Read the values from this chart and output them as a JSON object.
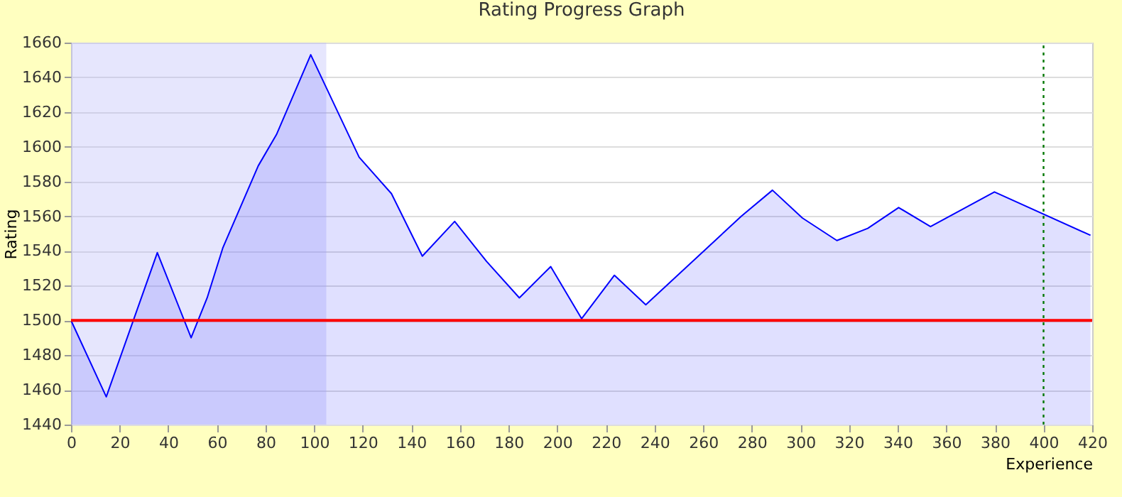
{
  "chart_data": {
    "type": "area",
    "title": "Rating Progress Graph",
    "xlabel": "Experience",
    "ylabel": "Rating",
    "x": [
      0,
      14.5,
      35.5,
      49.4,
      56,
      62.5,
      77,
      84.5,
      98.6,
      118.5,
      131.8,
      144.5,
      157.8,
      170.9,
      184.4,
      197.3,
      210,
      223.5,
      236.4,
      275.7,
      288.5,
      300.8,
      315,
      327.7,
      340.4,
      353.5,
      379.8,
      419.3
    ],
    "series": [
      {
        "color": "#0000ff",
        "values": [
          1500,
          1456,
          1539,
          1490,
          1513,
          1542,
          1589,
          1607,
          1653,
          1594,
          1573,
          1537,
          1557,
          1534,
          1513,
          1531,
          1501,
          1526,
          1509,
          1560,
          1575,
          1559,
          1546,
          1553,
          1565,
          1554,
          1574,
          1549
        ]
      }
    ],
    "xlim": [
      0,
      420
    ],
    "xticks": [
      0,
      20,
      40,
      60,
      80,
      100,
      120,
      140,
      160,
      180,
      200,
      220,
      240,
      260,
      280,
      300,
      320,
      340,
      360,
      380,
      400,
      420
    ],
    "ylim": [
      1440,
      1660
    ],
    "yticks": [
      1440,
      1460,
      1480,
      1500,
      1520,
      1540,
      1560,
      1580,
      1600,
      1620,
      1640,
      1660
    ],
    "grid": "y",
    "ref_lines": [
      {
        "axis": "y",
        "value": 1500,
        "color": "#ff0000",
        "line_style": "solid"
      },
      {
        "axis": "x",
        "value": 400,
        "color": "#007700",
        "line_style": "dotted"
      }
    ],
    "bands": [
      {
        "axis": "x",
        "from": 0,
        "to": 105,
        "color": "#b8b8f8"
      }
    ]
  }
}
